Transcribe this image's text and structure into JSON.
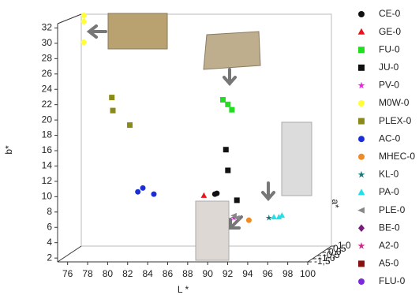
{
  "chart_data": {
    "type": "scatter3d",
    "xlabel": "L *",
    "ylabel": "b*",
    "zlabel": "a*",
    "xlim": [
      75,
      100
    ],
    "xticks": [
      76,
      78,
      80,
      82,
      84,
      86,
      88,
      90,
      92,
      94,
      96,
      98,
      100
    ],
    "ylim": [
      1.5,
      34
    ],
    "yticks": [
      2,
      4,
      6,
      8,
      10,
      12,
      14,
      16,
      18,
      20,
      22,
      24,
      26,
      28,
      30,
      32
    ],
    "zlim": [
      -1.5,
      1.0
    ],
    "zticks": [
      {
        "value": 1.0,
        "label": "1,0"
      },
      {
        "value": 0.5,
        "label": "0,5"
      },
      {
        "value": 0.0,
        "label": "0,0"
      },
      {
        "value": -0.5,
        "label": "-0,5"
      },
      {
        "value": -1.0,
        "label": "-1,0"
      },
      {
        "value": -1.5,
        "label": "-1,5"
      }
    ],
    "series": [
      {
        "name": "CE-0",
        "color": "#111111",
        "marker": "circle",
        "x": [
          89.3,
          89.5
        ],
        "y": [
          9.1,
          9.2
        ],
        "z": [
          0.0,
          0.0
        ]
      },
      {
        "name": "GE-0",
        "color": "#e8141b",
        "marker": "triangle",
        "x": [
          88.2
        ],
        "y": [
          8.9
        ],
        "z": [
          0.0
        ]
      },
      {
        "name": "FU-0",
        "color": "#22dd22",
        "marker": "square",
        "x": [
          90.1,
          90.6,
          91.0
        ],
        "y": [
          21.4,
          20.8,
          20.1
        ],
        "z": [
          0.0,
          0.0,
          0.0
        ]
      },
      {
        "name": "JU-0",
        "color": "#111111",
        "marker": "square",
        "x": [
          90.4,
          90.6,
          91.5
        ],
        "y": [
          14.9,
          12.2,
          8.3
        ],
        "z": [
          0.0,
          0.0,
          0.0
        ]
      },
      {
        "name": "PV-0",
        "color": "#ee22ee",
        "marker": "star",
        "x": [
          91.2
        ],
        "y": [
          6.0
        ],
        "z": [
          0.0
        ]
      },
      {
        "name": "M0W-0",
        "color": "#ffff33",
        "marker": "circle",
        "x": [
          76.2,
          76.2,
          76.2
        ],
        "y": [
          32.4,
          31.6,
          28.9
        ],
        "z": [
          0.0,
          0.0,
          0.0
        ]
      },
      {
        "name": "PLEX-0",
        "color": "#8a8a1a",
        "marker": "square",
        "x": [
          79.0,
          79.1,
          80.8
        ],
        "y": [
          21.7,
          20.0,
          18.1
        ],
        "z": [
          0.0,
          0.0,
          0.0
        ]
      },
      {
        "name": "AC-0",
        "color": "#1a2ed8",
        "marker": "circle",
        "x": [
          81.6,
          82.1,
          83.2
        ],
        "y": [
          9.4,
          9.9,
          9.1
        ],
        "z": [
          0.0,
          0.0,
          0.0
        ]
      },
      {
        "name": "MHEC-0",
        "color": "#f08a24",
        "marker": "circle",
        "x": [
          92.7
        ],
        "y": [
          5.7
        ],
        "z": [
          0.0
        ]
      },
      {
        "name": "KL-0",
        "color": "#1a7a7a",
        "marker": "star",
        "x": [
          94.7
        ],
        "y": [
          6.0
        ],
        "z": [
          0.0
        ]
      },
      {
        "name": "PA-0",
        "color": "#22e0e8",
        "marker": "triangle",
        "x": [
          95.2,
          95.7,
          96.0
        ],
        "y": [
          6.1,
          6.1,
          6.3
        ],
        "z": [
          0.0,
          0.0,
          0.0
        ]
      },
      {
        "name": "PLE-0",
        "color": "#888888",
        "marker": "arrow",
        "x": [
          91.2,
          91.5
        ],
        "y": [
          6.3,
          6.0
        ],
        "z": [
          0.0,
          0.0
        ]
      },
      {
        "name": "BE-0",
        "color": "#7a1a7a",
        "marker": "diamond",
        "x": [],
        "y": [],
        "z": []
      },
      {
        "name": "A2-0",
        "color": "#d8228a",
        "marker": "star",
        "x": [],
        "y": [],
        "z": []
      },
      {
        "name": "A5-0",
        "color": "#8a1010",
        "marker": "square",
        "x": [],
        "y": [],
        "z": []
      },
      {
        "name": "FLU-0",
        "color": "#7a2ad8",
        "marker": "circle",
        "x": [],
        "y": [],
        "z": []
      }
    ]
  }
}
